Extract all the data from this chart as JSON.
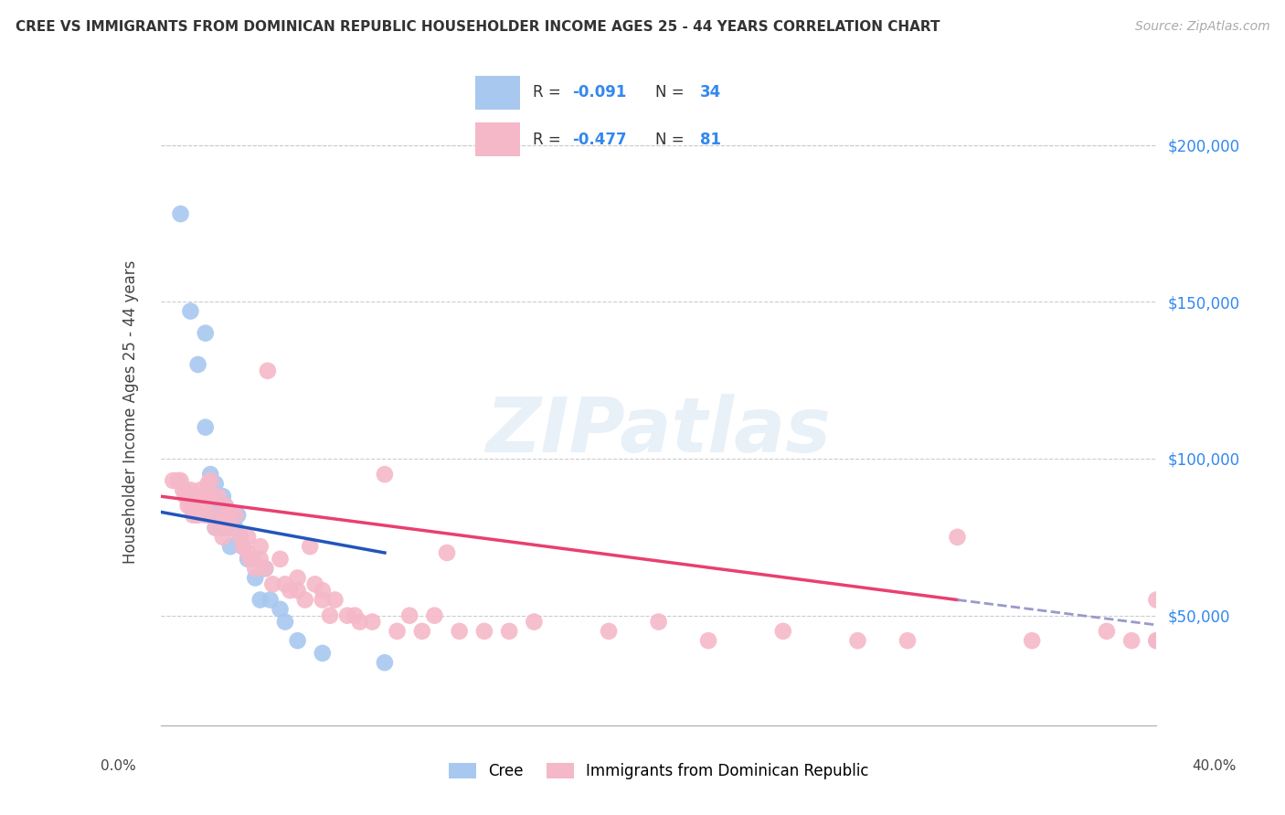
{
  "title": "CREE VS IMMIGRANTS FROM DOMINICAN REPUBLIC HOUSEHOLDER INCOME AGES 25 - 44 YEARS CORRELATION CHART",
  "source": "Source: ZipAtlas.com",
  "ylabel": "Householder Income Ages 25 - 44 years",
  "ytick_labels": [
    "$50,000",
    "$100,000",
    "$150,000",
    "$200,000"
  ],
  "ytick_values": [
    50000,
    100000,
    150000,
    200000
  ],
  "xmin": 0.0,
  "xmax": 0.4,
  "ymin": 15000,
  "ymax": 215000,
  "cree_color": "#a8c8f0",
  "dr_color": "#f5b8c8",
  "line_cree_color": "#2255bb",
  "line_dr_color": "#e84070",
  "dash_color": "#9999cc",
  "watermark_text": "ZIPatlas",
  "R_cree": -0.091,
  "N_cree": 34,
  "R_dr": -0.477,
  "N_dr": 81,
  "cree_scatter_x": [
    0.008,
    0.012,
    0.015,
    0.018,
    0.018,
    0.02,
    0.02,
    0.021,
    0.022,
    0.022,
    0.023,
    0.024,
    0.025,
    0.025,
    0.026,
    0.027,
    0.028,
    0.028,
    0.029,
    0.03,
    0.031,
    0.032,
    0.033,
    0.035,
    0.037,
    0.038,
    0.04,
    0.042,
    0.044,
    0.048,
    0.05,
    0.055,
    0.065,
    0.09
  ],
  "cree_scatter_y": [
    178000,
    147000,
    130000,
    140000,
    110000,
    95000,
    88000,
    82000,
    92000,
    78000,
    85000,
    82000,
    88000,
    78000,
    85000,
    78000,
    82000,
    72000,
    80000,
    78000,
    82000,
    75000,
    72000,
    68000,
    68000,
    62000,
    55000,
    65000,
    55000,
    52000,
    48000,
    42000,
    38000,
    35000
  ],
  "dr_scatter_x": [
    0.005,
    0.007,
    0.008,
    0.009,
    0.01,
    0.01,
    0.011,
    0.012,
    0.012,
    0.013,
    0.013,
    0.014,
    0.015,
    0.015,
    0.016,
    0.016,
    0.017,
    0.018,
    0.018,
    0.019,
    0.02,
    0.02,
    0.021,
    0.022,
    0.023,
    0.025,
    0.025,
    0.026,
    0.027,
    0.028,
    0.03,
    0.032,
    0.033,
    0.035,
    0.035,
    0.036,
    0.038,
    0.04,
    0.04,
    0.042,
    0.043,
    0.045,
    0.048,
    0.05,
    0.052,
    0.055,
    0.055,
    0.058,
    0.06,
    0.062,
    0.065,
    0.065,
    0.068,
    0.07,
    0.075,
    0.078,
    0.08,
    0.085,
    0.09,
    0.095,
    0.1,
    0.105,
    0.11,
    0.115,
    0.12,
    0.13,
    0.14,
    0.15,
    0.18,
    0.2,
    0.22,
    0.25,
    0.28,
    0.3,
    0.32,
    0.35,
    0.38,
    0.39,
    0.4,
    0.4,
    0.4
  ],
  "dr_scatter_y": [
    93000,
    93000,
    93000,
    90000,
    90000,
    88000,
    85000,
    90000,
    85000,
    88000,
    82000,
    85000,
    88000,
    82000,
    90000,
    85000,
    88000,
    85000,
    82000,
    92000,
    93000,
    88000,
    82000,
    78000,
    88000,
    80000,
    75000,
    85000,
    82000,
    78000,
    82000,
    75000,
    72000,
    75000,
    70000,
    68000,
    65000,
    72000,
    68000,
    65000,
    128000,
    60000,
    68000,
    60000,
    58000,
    62000,
    58000,
    55000,
    72000,
    60000,
    58000,
    55000,
    50000,
    55000,
    50000,
    50000,
    48000,
    48000,
    95000,
    45000,
    50000,
    45000,
    50000,
    70000,
    45000,
    45000,
    45000,
    48000,
    45000,
    48000,
    42000,
    45000,
    42000,
    42000,
    75000,
    42000,
    45000,
    42000,
    55000,
    42000,
    42000
  ]
}
